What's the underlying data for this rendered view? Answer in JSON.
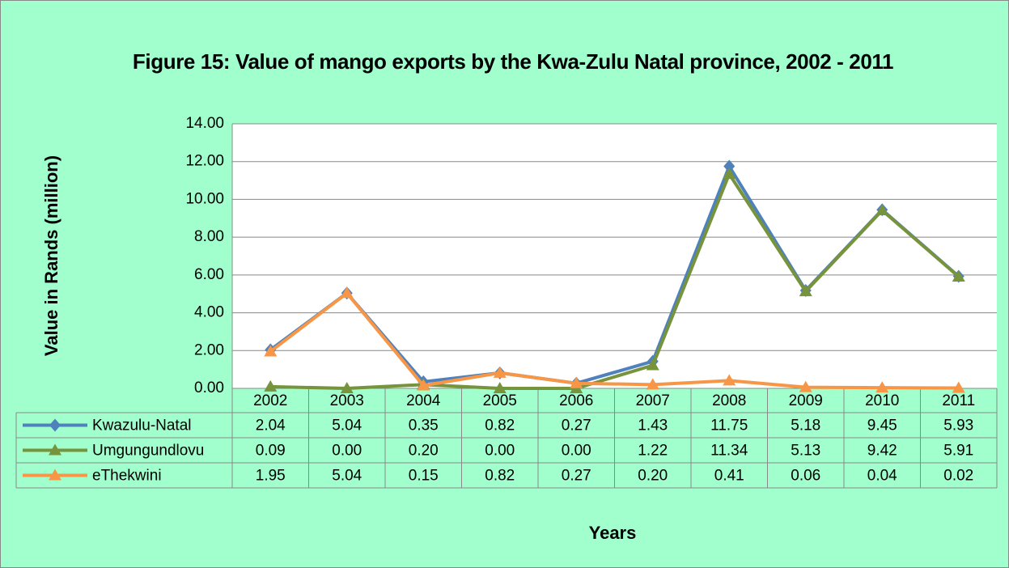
{
  "chart_data": {
    "type": "line",
    "title": "Figure 15: Value of mango exports by the Kwa-Zulu Natal province, 2002 - 2011",
    "ylabel": "Value in Rands (million)",
    "xlabel": "Years",
    "categories": [
      "2002",
      "2003",
      "2004",
      "2005",
      "2006",
      "2007",
      "2008",
      "2009",
      "2010",
      "2011"
    ],
    "series": [
      {
        "name": "Kwazulu-Natal",
        "color": "#4f81bd",
        "marker": "diamond",
        "values": [
          2.04,
          5.04,
          0.35,
          0.82,
          0.27,
          1.43,
          11.75,
          5.18,
          9.45,
          5.93
        ],
        "value_labels": [
          "2.04",
          "5.04",
          "0.35",
          "0.82",
          "0.27",
          "1.43",
          "11.75",
          "5.18",
          "9.45",
          "5.93"
        ]
      },
      {
        "name": "Umgungundlovu",
        "color": "#77933c",
        "marker": "triangle",
        "values": [
          0.09,
          0,
          0.2,
          0,
          0,
          1.22,
          11.34,
          5.13,
          9.42,
          5.91
        ],
        "value_labels": [
          "0.09",
          "0.00",
          "0.20",
          "0.00",
          "0.00",
          "1.22",
          "11.34",
          "5.13",
          "9.42",
          "5.91"
        ]
      },
      {
        "name": "eThekwini",
        "color": "#f79646",
        "marker": "triangle",
        "values": [
          1.95,
          5.04,
          0.15,
          0.82,
          0.27,
          0.2,
          0.41,
          0.06,
          0.04,
          0.02
        ],
        "value_labels": [
          "1.95",
          "5.04",
          "0.15",
          "0.82",
          "0.27",
          "0.20",
          "0.41",
          "0.06",
          "0.04",
          "0.02"
        ]
      }
    ],
    "ylim": [
      0,
      14
    ],
    "yticks": [
      {
        "value": 0,
        "label": "0.00"
      },
      {
        "value": 2,
        "label": "2.00"
      },
      {
        "value": 4,
        "label": "4.00"
      },
      {
        "value": 6,
        "label": "6.00"
      },
      {
        "value": 8,
        "label": "8.00"
      },
      {
        "value": 10,
        "label": "10.00"
      },
      {
        "value": 12,
        "label": "12.00"
      },
      {
        "value": 14,
        "label": "14.00"
      }
    ],
    "grid": true
  }
}
